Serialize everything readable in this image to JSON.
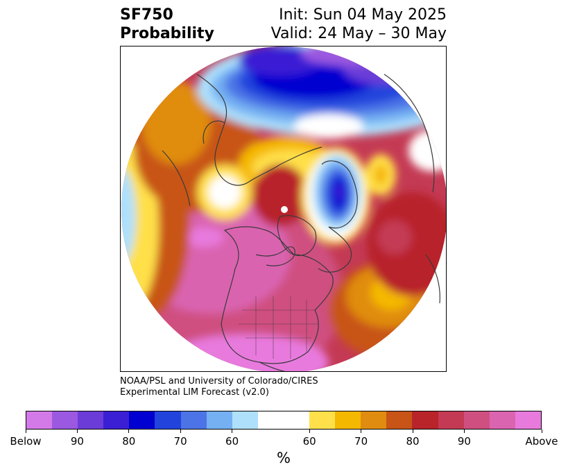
{
  "title": {
    "variable": "SF750",
    "kind": "Probability",
    "init": "Init: Sun 04 May 2025",
    "valid": "Valid: 24 May – 30 May"
  },
  "credit": {
    "line1": "NOAA/PSL and University of Colorado/CIRES",
    "line2": "Experimental LIM Forecast (v2.0)"
  },
  "colorbar": {
    "units": "%",
    "below_colors": [
      "#d47ae8",
      "#9b58e0",
      "#6b3cd8",
      "#3a1fd4",
      "#0000d0",
      "#2244dc",
      "#4c74e6",
      "#74b0f2",
      "#aee0fc"
    ],
    "neutral_color": "#ffffff",
    "above_colors": [
      "#ffe04a",
      "#f5b800",
      "#e08c10",
      "#c85418",
      "#b8242a",
      "#c43a54",
      "#cf5080",
      "#da64b0",
      "#e87ade"
    ],
    "tick_labels": [
      "Below",
      "90",
      "80",
      "70",
      "60",
      "60",
      "70",
      "80",
      "90",
      "Above"
    ]
  },
  "map": {
    "projection": "north-polar-stereographic",
    "land_outline_color": "#3a3a3a"
  }
}
